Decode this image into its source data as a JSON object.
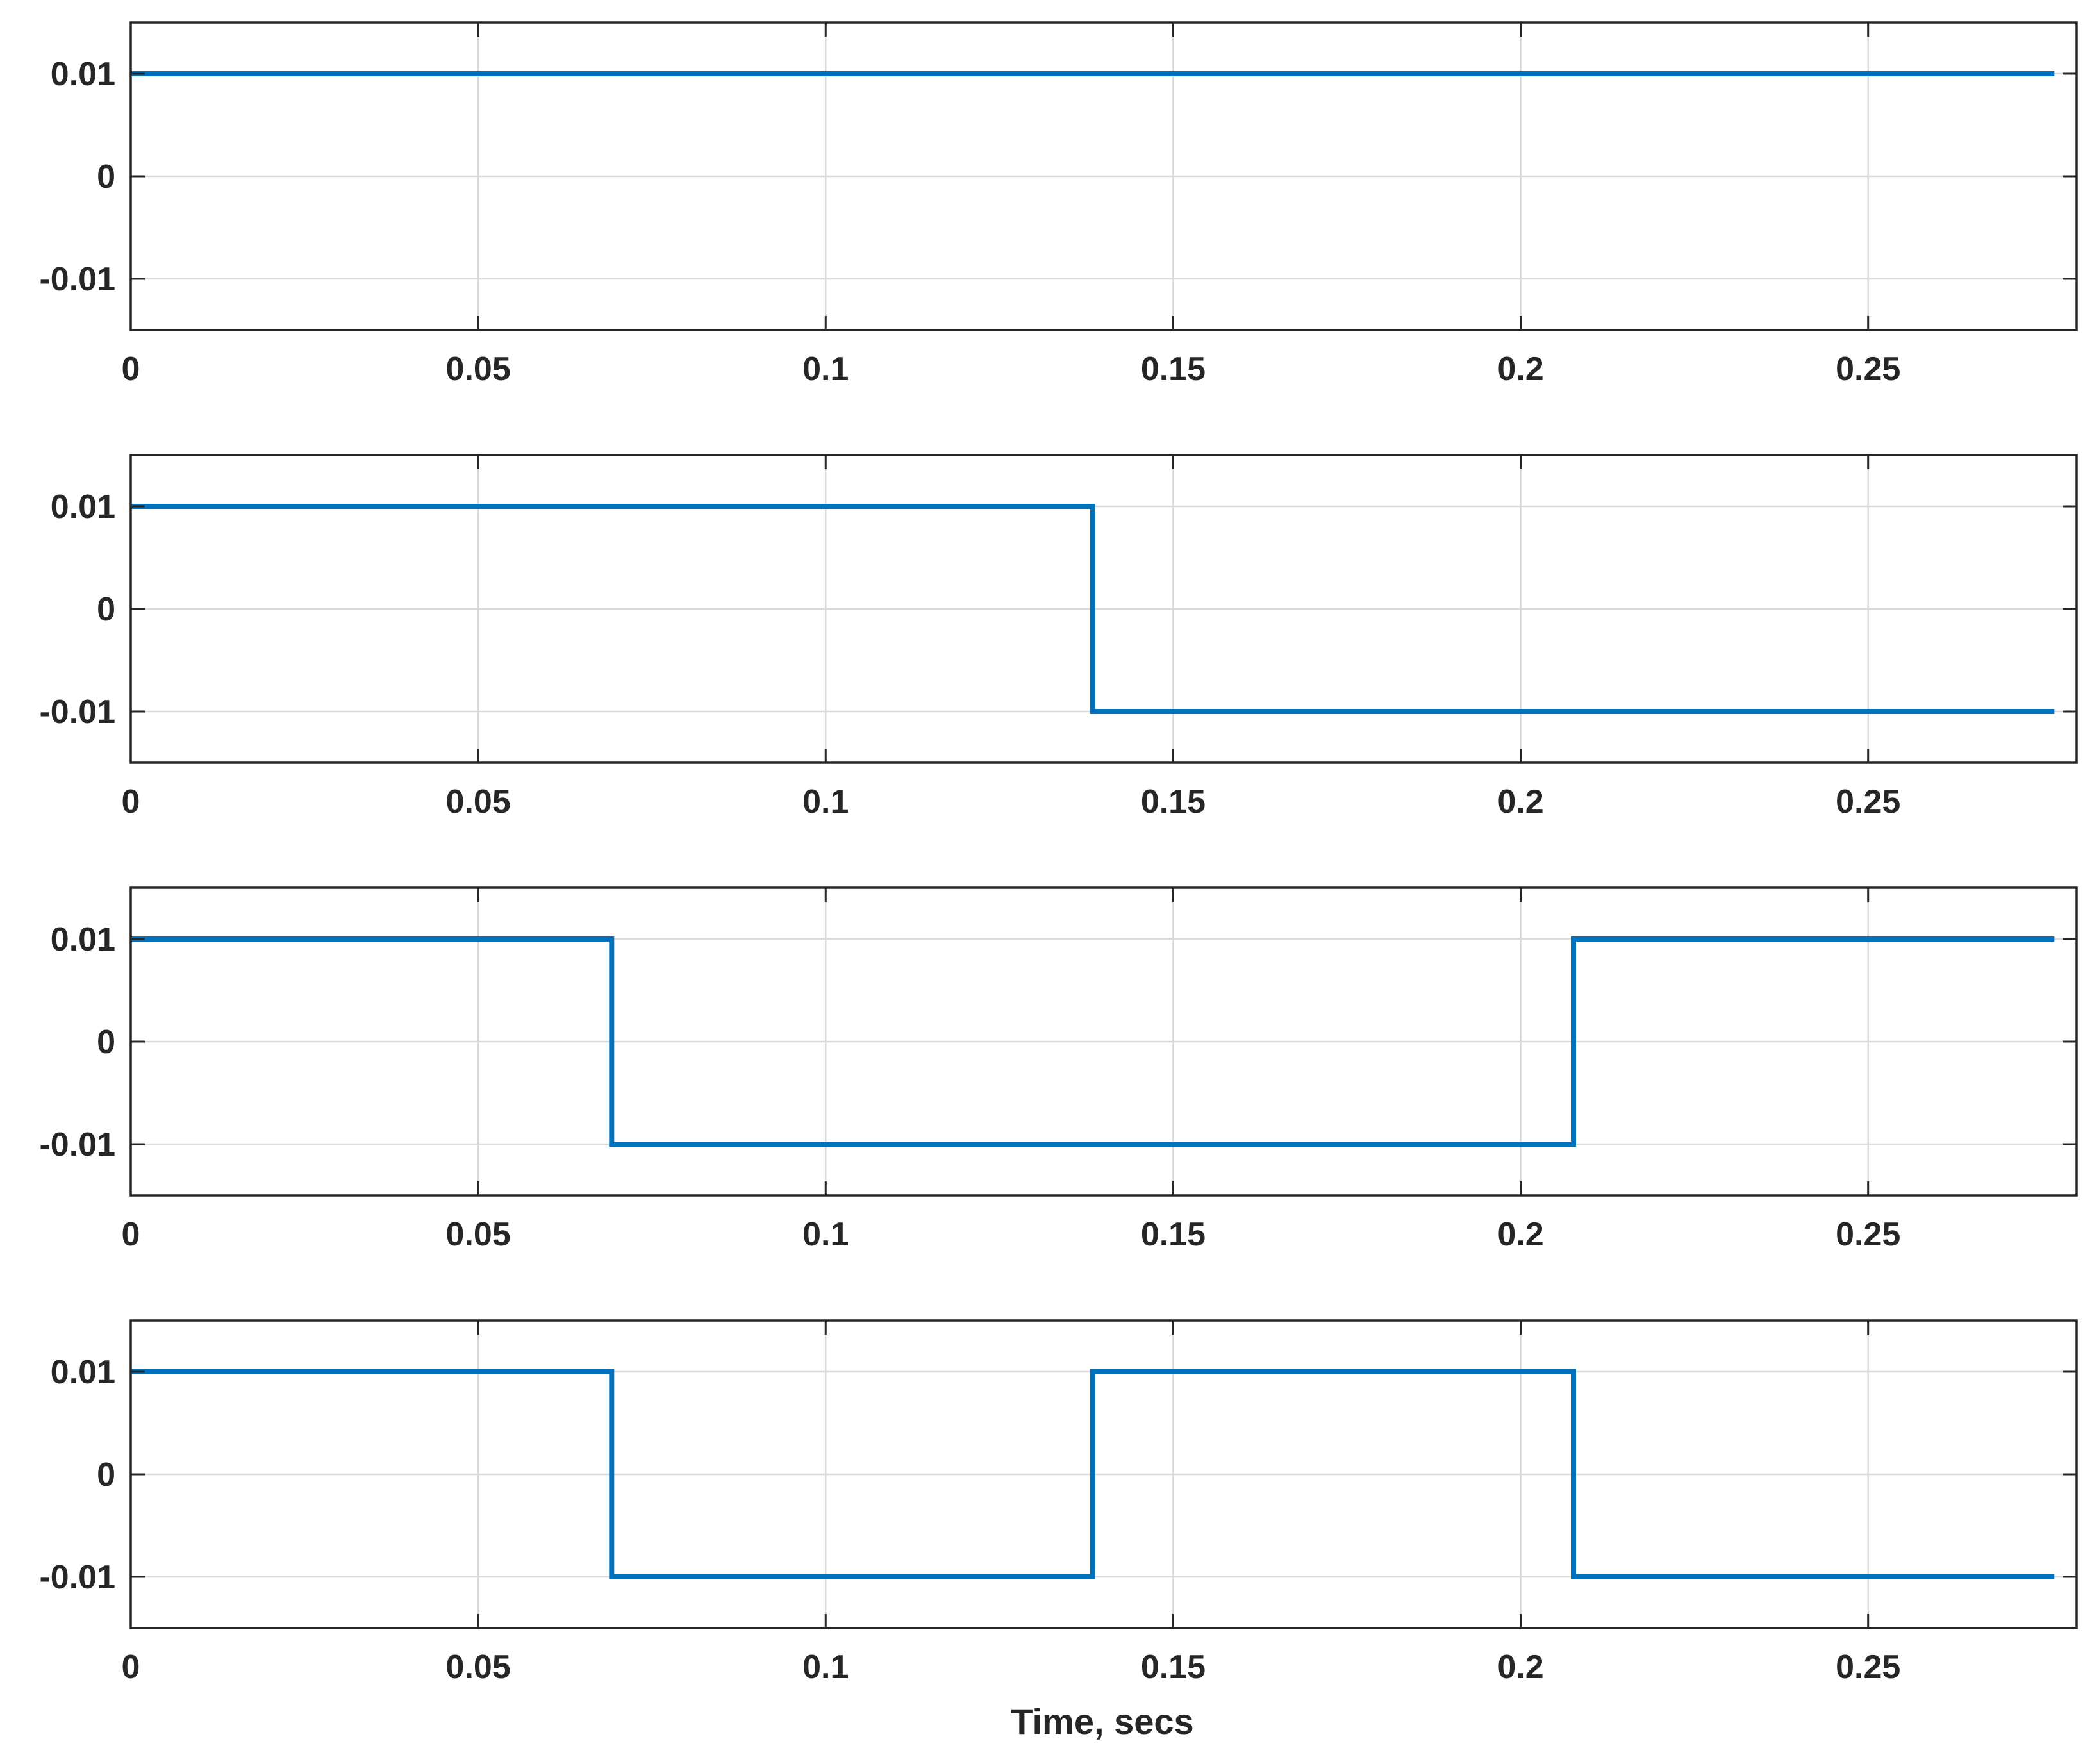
{
  "chart_data": {
    "type": "line",
    "xlabel": "Time, secs",
    "xlim": [
      0,
      0.28
    ],
    "x_ticks": [
      0,
      0.05,
      0.1,
      0.15,
      0.2,
      0.25
    ],
    "x_tick_labels": [
      "0",
      "0.05",
      "0.1",
      "0.15",
      "0.2",
      "0.25"
    ],
    "grid": true,
    "line_color": "#0072BD",
    "grid_color": "#d9d9d9",
    "axes_color": "#262626",
    "subplots": [
      {
        "ylim": [
          -0.015,
          0.015
        ],
        "y_ticks": [
          -0.01,
          0,
          0.01
        ],
        "y_tick_labels": [
          "-0.01",
          "0",
          "0.01"
        ],
        "series": [
          {
            "x": [
              0,
              0.2768
            ],
            "y": [
              0.01,
              0.01
            ]
          }
        ]
      },
      {
        "ylim": [
          -0.015,
          0.015
        ],
        "y_ticks": [
          -0.01,
          0,
          0.01
        ],
        "y_tick_labels": [
          "-0.01",
          "0",
          "0.01"
        ],
        "series": [
          {
            "x": [
              0,
              0.1384,
              0.1384,
              0.2768
            ],
            "y": [
              0.01,
              0.01,
              -0.01,
              -0.01
            ]
          }
        ]
      },
      {
        "ylim": [
          -0.015,
          0.015
        ],
        "y_ticks": [
          -0.01,
          0,
          0.01
        ],
        "y_tick_labels": [
          "-0.01",
          "0",
          "0.01"
        ],
        "series": [
          {
            "x": [
              0,
              0.0692,
              0.0692,
              0.2076,
              0.2076,
              0.2768
            ],
            "y": [
              0.01,
              0.01,
              -0.01,
              -0.01,
              0.01,
              0.01
            ]
          }
        ]
      },
      {
        "ylim": [
          -0.015,
          0.015
        ],
        "y_ticks": [
          -0.01,
          0,
          0.01
        ],
        "y_tick_labels": [
          "-0.01",
          "0",
          "0.01"
        ],
        "series": [
          {
            "x": [
              0,
              0.0692,
              0.0692,
              0.1384,
              0.1384,
              0.2076,
              0.2076,
              0.2768
            ],
            "y": [
              0.01,
              0.01,
              -0.01,
              -0.01,
              0.01,
              0.01,
              -0.01,
              -0.01
            ]
          }
        ]
      }
    ]
  }
}
